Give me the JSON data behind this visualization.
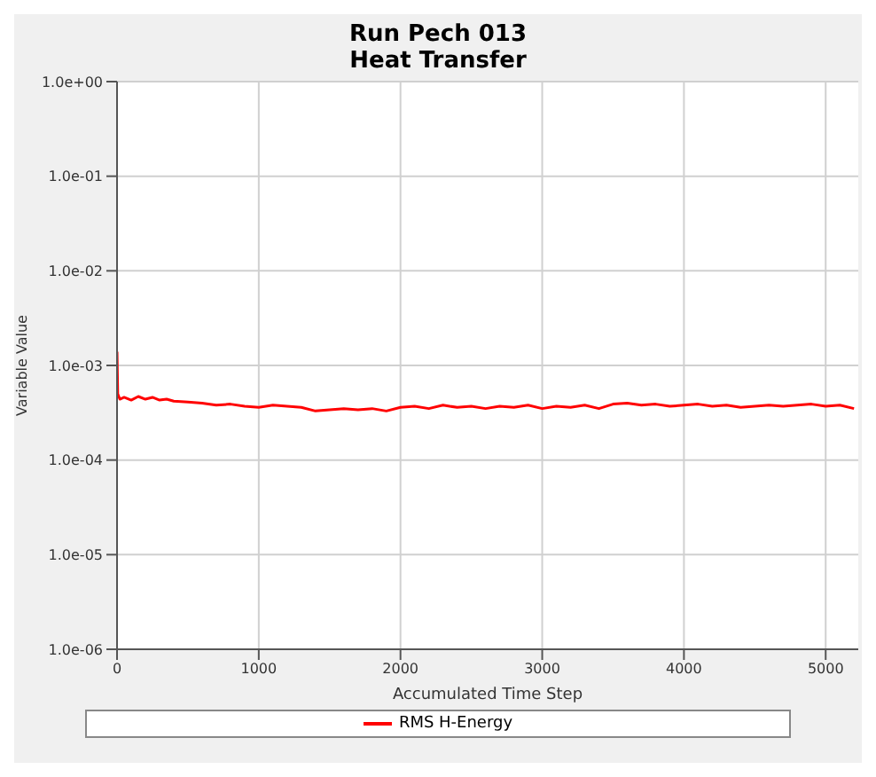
{
  "chart_data": {
    "type": "line",
    "title": "Run Pech 013",
    "subtitle": "Heat Transfer",
    "xlabel": "Accumulated Time Step",
    "ylabel": "Variable Value",
    "x": [
      0,
      5,
      20,
      50,
      100,
      150,
      200,
      250,
      300,
      350,
      400,
      500,
      600,
      700,
      800,
      900,
      1000,
      1100,
      1200,
      1300,
      1400,
      1500,
      1600,
      1700,
      1800,
      1900,
      2000,
      2100,
      2200,
      2300,
      2400,
      2500,
      2600,
      2700,
      2800,
      2900,
      3000,
      3100,
      3200,
      3300,
      3400,
      3500,
      3600,
      3700,
      3800,
      3900,
      4000,
      4100,
      4200,
      4300,
      4400,
      4500,
      4600,
      4700,
      4800,
      4900,
      5000,
      5100,
      5200
    ],
    "series": [
      {
        "name": "RMS H-Energy",
        "color": "#ff0000",
        "values": [
          0.0014,
          0.0005,
          0.00044,
          0.00046,
          0.00043,
          0.00047,
          0.00044,
          0.00046,
          0.00043,
          0.00044,
          0.00042,
          0.00041,
          0.0004,
          0.00038,
          0.00039,
          0.00037,
          0.00036,
          0.00038,
          0.00037,
          0.00036,
          0.00033,
          0.00034,
          0.00035,
          0.00034,
          0.00035,
          0.00033,
          0.00036,
          0.00037,
          0.00035,
          0.00038,
          0.00036,
          0.00037,
          0.00035,
          0.00037,
          0.00036,
          0.00038,
          0.00035,
          0.00037,
          0.00036,
          0.00038,
          0.00035,
          0.00039,
          0.0004,
          0.00038,
          0.00039,
          0.00037,
          0.00038,
          0.00039,
          0.00037,
          0.00038,
          0.00036,
          0.00037,
          0.00038,
          0.00037,
          0.00038,
          0.00039,
          0.00037,
          0.00038,
          0.00035
        ]
      }
    ],
    "log": "y",
    "xlim": [
      0,
      5230
    ],
    "xticks": [
      0,
      1000,
      2000,
      3000,
      4000,
      5000
    ],
    "ylim": [
      1e-06,
      1
    ],
    "yticks": [
      {
        "value": 1e-06,
        "label": "1.0e-06"
      },
      {
        "value": 1e-05,
        "label": "1.0e-05"
      },
      {
        "value": 0.0001,
        "label": "1.0e-04"
      },
      {
        "value": 0.001,
        "label": "1.0e-03"
      },
      {
        "value": 0.01,
        "label": "1.0e-02"
      },
      {
        "value": 0.1,
        "label": "1.0e-01"
      },
      {
        "value": 1,
        "label": "1.0e+00"
      }
    ],
    "grid": true,
    "legend": "bottom",
    "marker": "none",
    "line_style": "solid"
  }
}
